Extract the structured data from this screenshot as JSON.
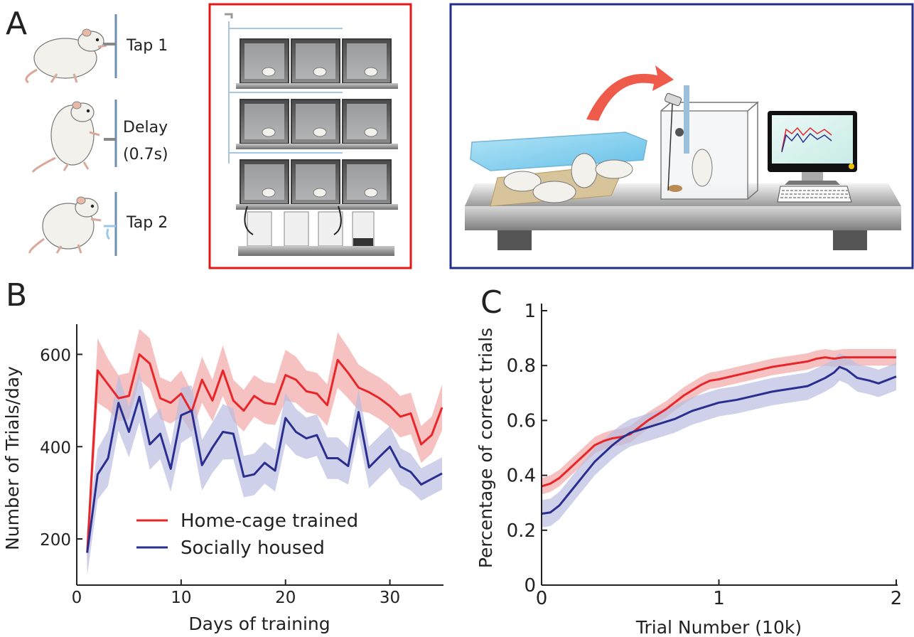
{
  "panels": {
    "a": {
      "letter": "A",
      "steps": [
        "Tap 1",
        "Delay",
        "(0.7s)",
        "Tap 2"
      ],
      "colors": {
        "rack_frame": "#e01818",
        "setup_frame": "#1f2e8a",
        "arrow": "#ee5b4b",
        "cage_wall": "#3c3c3c"
      },
      "icons": [
        "rat-drawing",
        "water-spout-icon",
        "cage-rack-illustration",
        "computer-tower-icon",
        "social-cage-illustration",
        "training-box-illustration",
        "camera-icon",
        "monitor-icon",
        "keyboard-icon",
        "transfer-arrow-icon"
      ]
    },
    "b": {
      "letter": "B"
    },
    "c": {
      "letter": "C"
    }
  },
  "chart_data": [
    {
      "type": "line",
      "panel": "B",
      "xlabel": "Days of training",
      "ylabel": "Number of Trials/day",
      "xlim": [
        0,
        35
      ],
      "ylim": [
        100,
        650
      ],
      "xticks": [
        0,
        10,
        20,
        30
      ],
      "yticks": [
        200,
        400,
        600
      ],
      "legend_position": "lower-left",
      "series": [
        {
          "name": "Home-cage trained",
          "color": "#e8262a",
          "band_color": "#f2a6a6",
          "x": [
            1,
            2,
            3,
            4,
            5,
            6,
            7,
            8,
            9,
            10,
            11,
            12,
            13,
            14,
            15,
            16,
            17,
            18,
            19,
            20,
            21,
            22,
            23,
            24,
            25,
            26,
            27,
            28,
            29,
            30,
            31,
            32,
            33,
            34,
            35
          ],
          "y": [
            170,
            565,
            535,
            505,
            510,
            600,
            580,
            505,
            495,
            515,
            475,
            545,
            500,
            565,
            500,
            478,
            510,
            495,
            492,
            555,
            545,
            520,
            515,
            490,
            588,
            560,
            528,
            518,
            505,
            488,
            465,
            472,
            405,
            425,
            485
          ],
          "err": [
            40,
            70,
            55,
            50,
            50,
            55,
            55,
            45,
            45,
            50,
            45,
            50,
            45,
            55,
            45,
            45,
            45,
            45,
            45,
            55,
            50,
            45,
            45,
            45,
            60,
            55,
            50,
            45,
            45,
            45,
            45,
            45,
            40,
            40,
            50
          ]
        },
        {
          "name": "Socially housed",
          "color": "#2a2f8f",
          "band_color": "#b9bde0",
          "x": [
            1,
            2,
            3,
            4,
            5,
            6,
            7,
            8,
            9,
            10,
            11,
            12,
            13,
            14,
            15,
            16,
            17,
            18,
            19,
            20,
            21,
            22,
            23,
            24,
            25,
            26,
            27,
            28,
            29,
            30,
            31,
            32,
            33,
            34,
            35
          ],
          "y": [
            170,
            340,
            375,
            495,
            432,
            508,
            405,
            428,
            352,
            468,
            478,
            360,
            398,
            432,
            428,
            335,
            340,
            365,
            348,
            462,
            432,
            418,
            425,
            375,
            375,
            358,
            475,
            355,
            378,
            400,
            357,
            345,
            318,
            330,
            342
          ],
          "err": [
            50,
            55,
            60,
            60,
            55,
            55,
            55,
            55,
            50,
            60,
            55,
            55,
            55,
            60,
            55,
            45,
            45,
            45,
            45,
            55,
            50,
            45,
            45,
            45,
            45,
            40,
            50,
            45,
            45,
            45,
            40,
            40,
            35,
            35,
            35
          ]
        }
      ]
    },
    {
      "type": "line",
      "panel": "C",
      "xlabel": "Trial Number (10k)",
      "ylabel": "Percentage of correct trials",
      "xlim": [
        0,
        2
      ],
      "ylim": [
        0,
        1
      ],
      "xticks": [
        0,
        1,
        2
      ],
      "yticks": [
        0,
        0.2,
        0.4,
        0.6,
        0.8,
        1
      ],
      "ytick_labels": [
        "0",
        "0.2",
        "0.4",
        "0.6",
        "0.8",
        "1"
      ],
      "series": [
        {
          "color": "#e8262a",
          "band_color": "#f2a6a6",
          "x": [
            0,
            0.05,
            0.1,
            0.15,
            0.2,
            0.25,
            0.3,
            0.35,
            0.4,
            0.45,
            0.5,
            0.55,
            0.6,
            0.65,
            0.7,
            0.75,
            0.8,
            0.85,
            0.9,
            0.95,
            1.0,
            1.1,
            1.2,
            1.3,
            1.4,
            1.5,
            1.55,
            1.6,
            1.65,
            1.7,
            1.75,
            1.8,
            1.9,
            2.0
          ],
          "y": [
            0.36,
            0.37,
            0.39,
            0.42,
            0.45,
            0.48,
            0.51,
            0.525,
            0.535,
            0.54,
            0.55,
            0.575,
            0.6,
            0.62,
            0.64,
            0.665,
            0.69,
            0.71,
            0.73,
            0.745,
            0.75,
            0.765,
            0.78,
            0.795,
            0.805,
            0.815,
            0.825,
            0.83,
            0.825,
            0.83,
            0.83,
            0.83,
            0.83,
            0.83
          ],
          "err": [
            0.03,
            0.03,
            0.03,
            0.03,
            0.03,
            0.03,
            0.03,
            0.03,
            0.03,
            0.03,
            0.03,
            0.03,
            0.03,
            0.03,
            0.03,
            0.03,
            0.03,
            0.03,
            0.03,
            0.03,
            0.03,
            0.03,
            0.03,
            0.03,
            0.03,
            0.03,
            0.03,
            0.03,
            0.03,
            0.03,
            0.03,
            0.03,
            0.03,
            0.03
          ]
        },
        {
          "color": "#2a2f8f",
          "band_color": "#b9bde0",
          "x": [
            0,
            0.05,
            0.1,
            0.15,
            0.2,
            0.25,
            0.3,
            0.35,
            0.4,
            0.45,
            0.5,
            0.55,
            0.6,
            0.65,
            0.7,
            0.75,
            0.8,
            0.85,
            0.9,
            0.95,
            1.0,
            1.1,
            1.2,
            1.3,
            1.4,
            1.5,
            1.55,
            1.6,
            1.65,
            1.68,
            1.72,
            1.78,
            1.85,
            1.9,
            2.0
          ],
          "y": [
            0.26,
            0.265,
            0.29,
            0.33,
            0.37,
            0.41,
            0.45,
            0.48,
            0.51,
            0.535,
            0.555,
            0.565,
            0.575,
            0.585,
            0.595,
            0.605,
            0.62,
            0.635,
            0.645,
            0.655,
            0.665,
            0.675,
            0.69,
            0.705,
            0.715,
            0.725,
            0.74,
            0.755,
            0.775,
            0.795,
            0.785,
            0.755,
            0.745,
            0.735,
            0.76
          ],
          "err": [
            0.05,
            0.05,
            0.05,
            0.05,
            0.05,
            0.05,
            0.05,
            0.05,
            0.05,
            0.05,
            0.05,
            0.05,
            0.05,
            0.05,
            0.05,
            0.05,
            0.05,
            0.05,
            0.05,
            0.05,
            0.05,
            0.05,
            0.05,
            0.05,
            0.05,
            0.05,
            0.05,
            0.05,
            0.05,
            0.05,
            0.05,
            0.05,
            0.05,
            0.05,
            0.05
          ]
        }
      ]
    }
  ]
}
